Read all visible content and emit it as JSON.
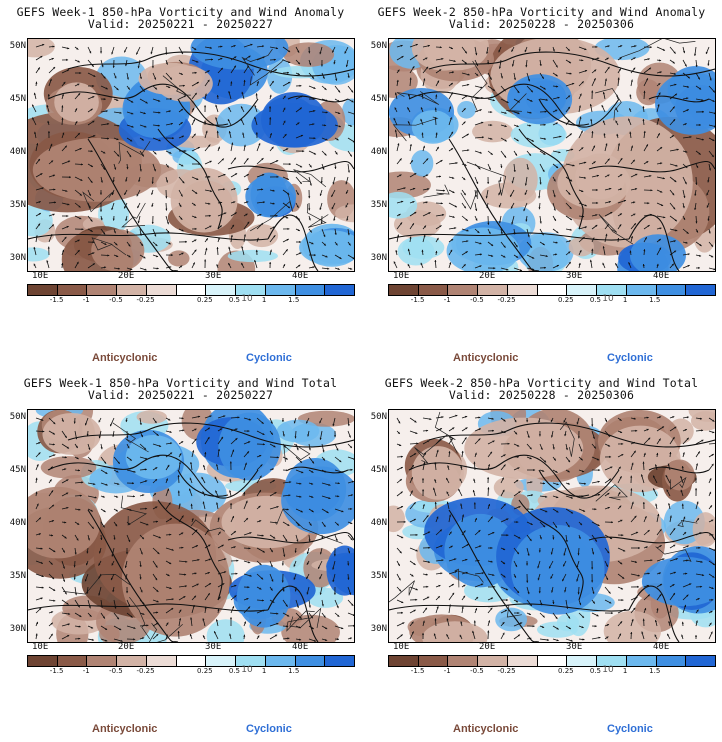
{
  "panels": [
    {
      "title_line1": "GEFS Week-1 850-hPa Vorticity and Wind Anomaly",
      "title_line2": "Valid: 20250221 - 20250227",
      "variant": "anomaly1"
    },
    {
      "title_line1": "GEFS Week-2 850-hPa Vorticity and Wind Anomaly",
      "title_line2": "Valid: 20250228 - 20250306",
      "variant": "anomaly2"
    },
    {
      "title_line1": "GEFS Week-1 850-hPa Vorticity and Wind Total",
      "title_line2": "Valid: 20250221 - 20250227",
      "variant": "total1"
    },
    {
      "title_line1": "GEFS Week-2 850-hPa Vorticity and Wind Total",
      "title_line2": "Valid: 20250228 - 20250306",
      "variant": "total2"
    }
  ],
  "axes": {
    "lat_labels": [
      "50N",
      "45N",
      "40N",
      "35N",
      "30N"
    ],
    "lon_labels": [
      "10E",
      "20E",
      "30E",
      "40E"
    ]
  },
  "colorbar": {
    "labels": [
      "-1.5",
      "-1",
      "-0.5",
      "-0.25",
      "0.25",
      "0.5",
      "1",
      "1.5"
    ],
    "exponent_label": "10",
    "colors": [
      "#6e4433",
      "#8a5a48",
      "#b08474",
      "#d2b3a6",
      "#ecdcd6",
      "#ffffff",
      "#d8f3fa",
      "#9fdff2",
      "#6cb8ee",
      "#3f8fe2",
      "#2166d4"
    ]
  },
  "legend": {
    "anticyclonic": "Anticyclonic",
    "cyclonic": "Cyclonic",
    "anticyclonic_color": "#7a4a3a",
    "cyclonic_color": "#2f6fd6"
  }
}
